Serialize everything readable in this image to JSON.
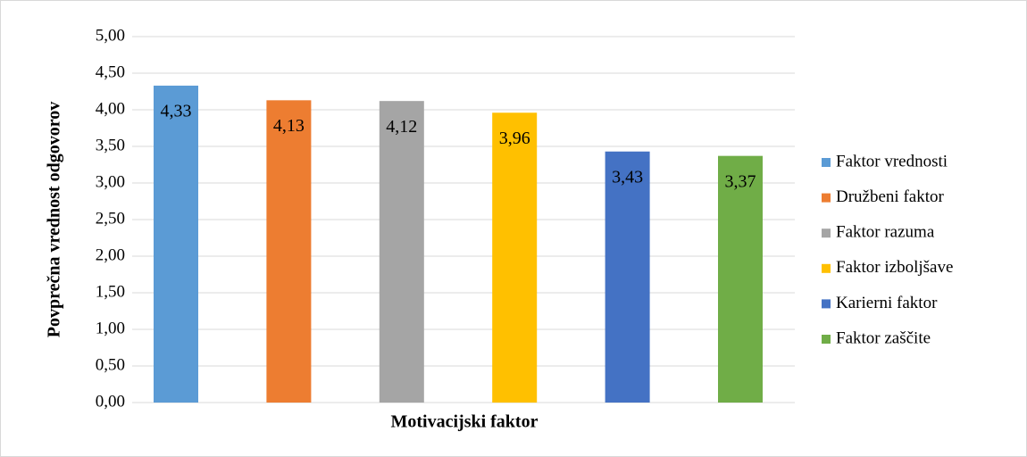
{
  "chart_data": {
    "type": "bar",
    "y_label": "Povprečna vrednost odgovorov",
    "x_label": "Motivacijski faktor",
    "categories": [
      "Faktor vrednosti",
      "Družbeni faktor",
      "Faktor razuma",
      "Faktor izboljšave",
      "Karierni faktor",
      "Faktor zaščite"
    ],
    "values": [
      4.33,
      4.13,
      4.12,
      3.96,
      3.43,
      3.37
    ],
    "value_labels": [
      "4,33",
      "4,13",
      "4,12",
      "3,96",
      "3,43",
      "3,37"
    ],
    "colors": [
      "#5b9bd5",
      "#ed7d31",
      "#a5a5a5",
      "#ffc000",
      "#4472c4",
      "#70ad47"
    ],
    "ylim": [
      0,
      5
    ],
    "yticks": [
      {
        "value": 0,
        "label": "0,00"
      },
      {
        "value": 0.5,
        "label": "0,50"
      },
      {
        "value": 1,
        "label": "1,00"
      },
      {
        "value": 1.5,
        "label": "1,50"
      },
      {
        "value": 2,
        "label": "2,00"
      },
      {
        "value": 2.5,
        "label": "2,50"
      },
      {
        "value": 3,
        "label": "3,00"
      },
      {
        "value": 3.5,
        "label": "3,50"
      },
      {
        "value": 4,
        "label": "4,00"
      },
      {
        "value": 4.5,
        "label": "4,50"
      },
      {
        "value": 5,
        "label": "5,00"
      }
    ],
    "grid": true,
    "legend": "right"
  }
}
